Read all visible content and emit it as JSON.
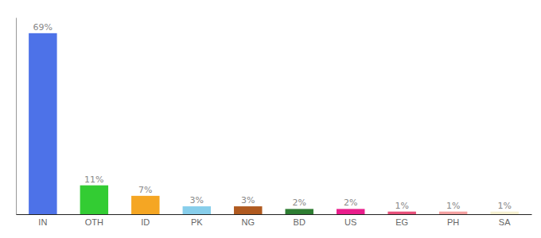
{
  "chart_data": {
    "type": "bar",
    "categories": [
      "IN",
      "OTH",
      "ID",
      "PK",
      "NG",
      "BD",
      "US",
      "EG",
      "PH",
      "SA"
    ],
    "values": [
      69,
      11,
      7,
      3,
      3,
      2,
      2,
      1,
      1,
      1
    ],
    "value_labels": [
      "69%",
      "11%",
      "7%",
      "3%",
      "3%",
      "2%",
      "2%",
      "1%",
      "1%",
      "1%"
    ],
    "colors": [
      "#4d72e8",
      "#33cc33",
      "#f5a623",
      "#87ceeb",
      "#b05a20",
      "#2e7d32",
      "#e91e8c",
      "#e8507a",
      "#f4a0a0",
      "#f5f0d0"
    ],
    "ylim": [
      0,
      75
    ],
    "data_labels": true,
    "tick_labels": "x"
  }
}
